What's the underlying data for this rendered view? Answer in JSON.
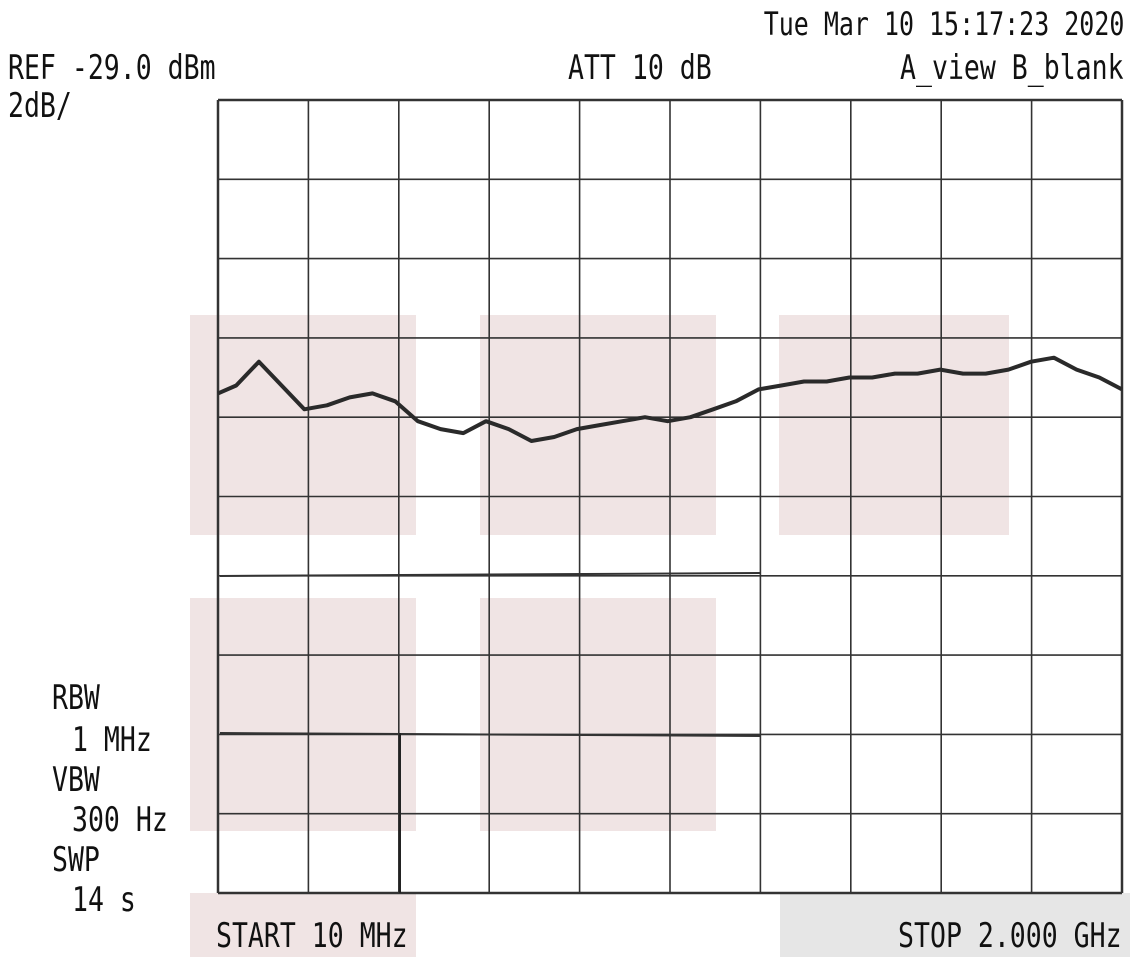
{
  "header": {
    "timestamp": "Tue Mar 10 15:17:23 2020",
    "ref_level": "REF -29.0 dBm",
    "scale": "2dB/",
    "attenuation": "ATT 10 dB",
    "view_mode": "A_view B_blank"
  },
  "settings": {
    "rbw_label": "RBW",
    "rbw_value": "1 MHz",
    "vbw_label": "VBW",
    "vbw_value": "300 Hz",
    "swp_label": "SWP",
    "swp_value": "14 s"
  },
  "footer": {
    "start": "START 10 MHz",
    "stop": "STOP 2.000 GHz"
  },
  "colors": {
    "trace": "#2a2a2a",
    "grid": "#333333",
    "highlight": "#f0e4e4",
    "stop_highlight": "#e6e6e6"
  },
  "chart_data": {
    "type": "line",
    "title": "",
    "xlabel": "",
    "ylabel": "",
    "x_unit": "MHz",
    "y_unit": "dBm",
    "xlim": [
      10,
      2000
    ],
    "ylim": [
      -49.0,
      -29.0
    ],
    "ref_level": -29.0,
    "db_per_div": 2,
    "divisions": 10,
    "grid": true,
    "series": [
      {
        "x": [
          10,
          50,
          100,
          150,
          200,
          250,
          300,
          350,
          400,
          450,
          500,
          550,
          600,
          650,
          700,
          750,
          800,
          850,
          900,
          950,
          1000,
          1050,
          1100,
          1150,
          1200,
          1250,
          1300,
          1350,
          1400,
          1450,
          1500,
          1550,
          1600,
          1650,
          1700,
          1750,
          1800,
          1850,
          1900,
          1950,
          2000
        ],
        "y": [
          -36.4,
          -36.2,
          -35.6,
          -36.2,
          -36.8,
          -36.7,
          -36.5,
          -36.4,
          -36.6,
          -37.1,
          -37.3,
          -37.4,
          -37.1,
          -37.3,
          -37.6,
          -37.5,
          -37.3,
          -37.2,
          -37.1,
          -37.0,
          -37.1,
          -37.0,
          -36.8,
          -36.6,
          -36.3,
          -36.2,
          -36.1,
          -36.1,
          -36.0,
          -36.0,
          -35.9,
          -35.9,
          -35.8,
          -35.9,
          -35.9,
          -35.8,
          -35.6,
          -35.5,
          -35.8,
          -36.0,
          -36.3
        ]
      }
    ]
  }
}
